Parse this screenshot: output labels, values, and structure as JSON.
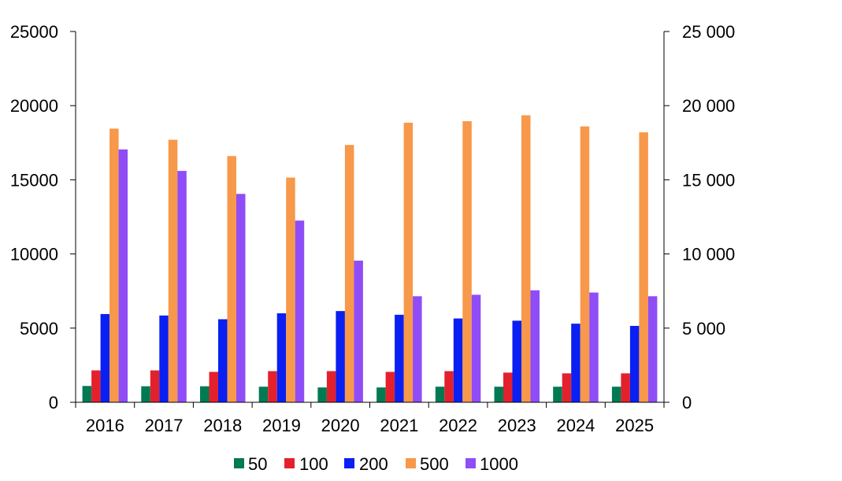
{
  "chart_data": {
    "type": "bar",
    "categories": [
      "2016",
      "2017",
      "2018",
      "2019",
      "2020",
      "2021",
      "2022",
      "2023",
      "2024",
      "2025"
    ],
    "series": [
      {
        "name": "50",
        "color": "#007a53",
        "values": [
          1100,
          1080,
          1080,
          1050,
          1000,
          1000,
          1050,
          1050,
          1050,
          1050
        ]
      },
      {
        "name": "100",
        "color": "#e3212d",
        "values": [
          2150,
          2150,
          2050,
          2100,
          2100,
          2050,
          2100,
          2000,
          1950,
          1950
        ]
      },
      {
        "name": "200",
        "color": "#0a1ff2",
        "values": [
          5950,
          5850,
          5600,
          6000,
          6150,
          5900,
          5650,
          5500,
          5300,
          5150
        ]
      },
      {
        "name": "500",
        "color": "#f7984a",
        "values": [
          18450,
          17700,
          16600,
          15150,
          17350,
          18850,
          18950,
          19350,
          18600,
          18200
        ]
      },
      {
        "name": "1000",
        "color": "#8f4df7",
        "values": [
          17050,
          15600,
          14050,
          12250,
          9550,
          7150,
          7250,
          7550,
          7400,
          7150
        ]
      }
    ],
    "ylim": [
      0,
      25000
    ],
    "left_ticks": [
      "0",
      "5000",
      "10000",
      "15000",
      "20000",
      "25000"
    ],
    "right_ticks": [
      "0",
      "5 000",
      "10 000",
      "15 000",
      "20 000",
      "25 000"
    ],
    "legend_placement": "bottom-center",
    "grid": false
  }
}
